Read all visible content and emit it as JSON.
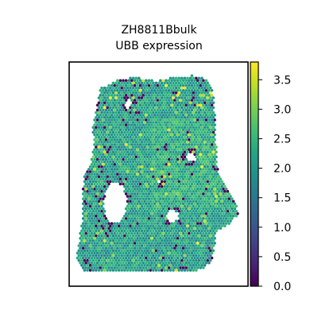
{
  "chart_data": {
    "type": "scatter",
    "title": "ZH8811Bbulk",
    "subtitle": "UBB expression",
    "xlabel": "",
    "ylabel": "",
    "grid": false,
    "legend": "none",
    "colorbar": {
      "colormap": "viridis",
      "range": [
        0.0,
        3.8
      ],
      "ticks": [
        0.0,
        0.5,
        1.0,
        1.5,
        2.0,
        2.5,
        3.0,
        3.5
      ],
      "tick_labels": [
        "0.0",
        "0.5",
        "1.0",
        "1.5",
        "2.0",
        "2.5",
        "3.0",
        "3.5"
      ],
      "position": "right"
    },
    "points_description": "Hexagonal grid of spatial spots shaped like a tissue section; values mostly 1.8-2.6 (teal-green) with scattered 0.0 (dark purple) spots along edges and holes and a few 3.5+ (yellow) spots near the top.",
    "value_distribution": {
      "typical_min": 1.5,
      "typical_max": 3.0,
      "zero_fraction": 0.06,
      "high_fraction": 0.02
    }
  },
  "colors": {
    "viridis": [
      "#440154",
      "#482475",
      "#414487",
      "#355f8d",
      "#2a788e",
      "#21918c",
      "#22a884",
      "#44bf70",
      "#7ad151",
      "#bddf26",
      "#fde725"
    ],
    "frame": "#000000",
    "background": "#ffffff"
  }
}
